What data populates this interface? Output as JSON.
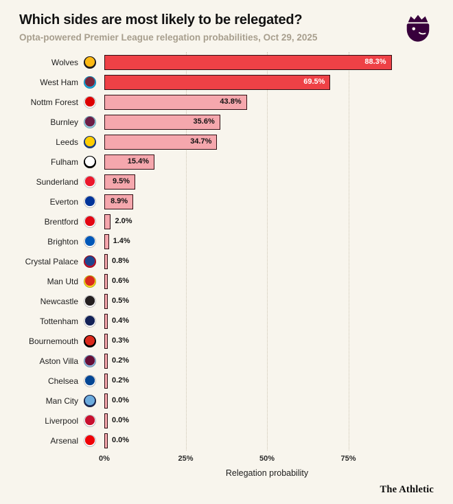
{
  "header": {
    "title": "Which sides are most likely to be relegated?",
    "subtitle": "Opta-powered Premier League relegation probabilities, Oct 29, 2025",
    "logo_icon": "premier-league-lion",
    "logo_color": "#38003c"
  },
  "chart_data": {
    "type": "bar",
    "orientation": "horizontal",
    "title": "Which sides are most likely to be relegated?",
    "subtitle": "Opta-powered Premier League relegation probabilities, Oct 29, 2025",
    "xlabel": "Relegation probability",
    "xlim": [
      0,
      100
    ],
    "grid": "vertical-dotted",
    "x_ticks": [
      {
        "value": 0,
        "label": "0%"
      },
      {
        "value": 25,
        "label": "25%"
      },
      {
        "value": 50,
        "label": "50%"
      },
      {
        "value": 75,
        "label": "75%"
      }
    ],
    "style": {
      "solid_bar_color": "#ee4146",
      "light_bar_color": "#f5a7ad",
      "bar_border_color": "#2d0d11",
      "solid_threshold": 60,
      "label_inside_min": 8
    },
    "teams": [
      {
        "name": "Wolves",
        "value": 88.3,
        "label": "88.3%",
        "crest": [
          "#fdb913",
          "#231f20"
        ]
      },
      {
        "name": "West Ham",
        "value": 69.5,
        "label": "69.5%",
        "crest": [
          "#7a263a",
          "#1bb1e7"
        ]
      },
      {
        "name": "Nottm Forest",
        "value": 43.8,
        "label": "43.8%",
        "crest": [
          "#dd0000",
          "#ffffff"
        ]
      },
      {
        "name": "Burnley",
        "value": 35.6,
        "label": "35.6%",
        "crest": [
          "#6c1d45",
          "#99d6ea"
        ]
      },
      {
        "name": "Leeds",
        "value": 34.7,
        "label": "34.7%",
        "crest": [
          "#ffcd00",
          "#1d428a"
        ]
      },
      {
        "name": "Fulham",
        "value": 15.4,
        "label": "15.4%",
        "crest": [
          "#ffffff",
          "#000000"
        ]
      },
      {
        "name": "Sunderland",
        "value": 9.5,
        "label": "9.5%",
        "crest": [
          "#eb172b",
          "#ffffff"
        ]
      },
      {
        "name": "Everton",
        "value": 8.9,
        "label": "8.9%",
        "crest": [
          "#003399",
          "#ffffff"
        ]
      },
      {
        "name": "Brentford",
        "value": 2.0,
        "label": "2.0%",
        "crest": [
          "#e30613",
          "#ffffff"
        ]
      },
      {
        "name": "Brighton",
        "value": 1.4,
        "label": "1.4%",
        "crest": [
          "#0057b8",
          "#ffffff"
        ]
      },
      {
        "name": "Crystal Palace",
        "value": 0.8,
        "label": "0.8%",
        "crest": [
          "#1b458f",
          "#c4122e"
        ]
      },
      {
        "name": "Man Utd",
        "value": 0.6,
        "label": "0.6%",
        "crest": [
          "#da291c",
          "#fbe122"
        ]
      },
      {
        "name": "Newcastle",
        "value": 0.5,
        "label": "0.5%",
        "crest": [
          "#241f20",
          "#ffffff"
        ]
      },
      {
        "name": "Tottenham",
        "value": 0.4,
        "label": "0.4%",
        "crest": [
          "#132257",
          "#ffffff"
        ]
      },
      {
        "name": "Bournemouth",
        "value": 0.3,
        "label": "0.3%",
        "crest": [
          "#da291c",
          "#000000"
        ]
      },
      {
        "name": "Aston Villa",
        "value": 0.2,
        "label": "0.2%",
        "crest": [
          "#670e36",
          "#95bfe5"
        ]
      },
      {
        "name": "Chelsea",
        "value": 0.2,
        "label": "0.2%",
        "crest": [
          "#034694",
          "#ffffff"
        ]
      },
      {
        "name": "Man City",
        "value": 0.0,
        "label": "0.0%",
        "crest": [
          "#6cabdd",
          "#1c2c5b"
        ]
      },
      {
        "name": "Liverpool",
        "value": 0.0,
        "label": "0.0%",
        "crest": [
          "#c8102e",
          "#ffffff"
        ]
      },
      {
        "name": "Arsenal",
        "value": 0.0,
        "label": "0.0%",
        "crest": [
          "#ef0107",
          "#ffffff"
        ]
      }
    ]
  },
  "footer": {
    "brand": "The Athletic"
  }
}
